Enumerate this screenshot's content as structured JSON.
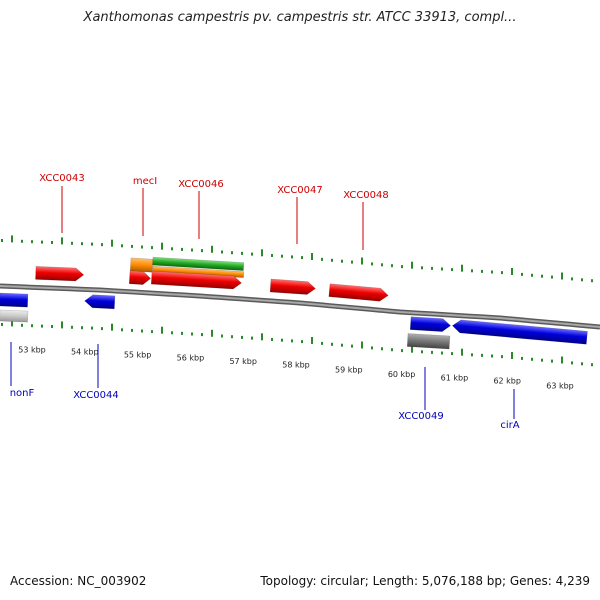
{
  "title": "Xanthomonas campestris pv. campestris str. ATCC 33913, compl...",
  "footer": {
    "accession": "Accession: NC_003902",
    "summary": "Topology: circular; Length: 5,076,188 bp; Genes: 4,239"
  },
  "colors": {
    "forward_label": "#cc0000",
    "reverse_label": "#0000bb",
    "tick": "#2a8a2a",
    "backbone": "#8a8a8a",
    "red_gene": "#ee0000",
    "blue_gene": "#0000dd",
    "orange_gene": "#ff8c00",
    "green_gene": "#22aa22",
    "gray_gene": "#777777",
    "light_gene": "#c8c8c8"
  },
  "axis": {
    "unit": "kbp",
    "ticks": [
      {
        "value": 53,
        "label": "53 kbp"
      },
      {
        "value": 54,
        "label": "54 kbp"
      },
      {
        "value": 55,
        "label": "55 kbp"
      },
      {
        "value": 56,
        "label": "56 kbp"
      },
      {
        "value": 57,
        "label": "57 kbp"
      },
      {
        "value": 58,
        "label": "58 kbp"
      },
      {
        "value": 59,
        "label": "59 kbp"
      },
      {
        "value": 60,
        "label": "60 kbp"
      },
      {
        "value": 61,
        "label": "61 kbp"
      },
      {
        "value": 62,
        "label": "62 kbp"
      },
      {
        "value": 63,
        "label": "63 kbp"
      }
    ]
  },
  "gene_labels": [
    {
      "name": "XCC0043",
      "strand": "forward"
    },
    {
      "name": "mecI",
      "strand": "forward"
    },
    {
      "name": "XCC0046",
      "strand": "forward"
    },
    {
      "name": "XCC0047",
      "strand": "forward"
    },
    {
      "name": "XCC0048",
      "strand": "forward"
    },
    {
      "name": "nonF",
      "strand": "reverse"
    },
    {
      "name": "XCC0044",
      "strand": "reverse"
    },
    {
      "name": "XCC0049",
      "strand": "reverse"
    },
    {
      "name": "cirA",
      "strand": "reverse"
    }
  ]
}
